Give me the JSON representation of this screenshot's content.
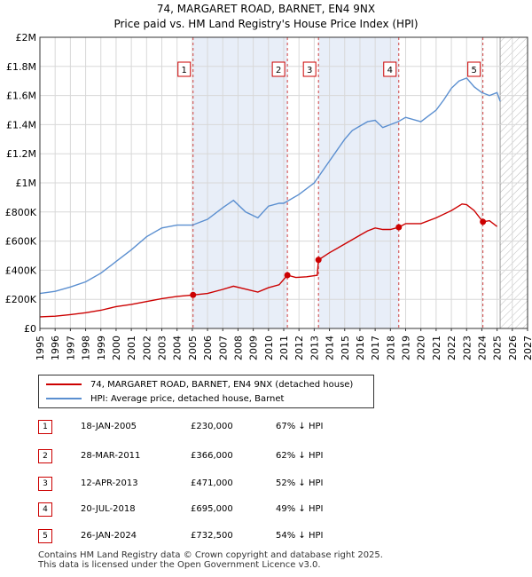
{
  "title": "74, MARGARET ROAD, BARNET, EN4 9NX",
  "subtitle": "Price paid vs. HM Land Registry's House Price Index (HPI)",
  "colors": {
    "property": "#cc0000",
    "hpi": "#5b8fd0",
    "shade": "#e8eef8",
    "grid": "#d8d8d8",
    "vline": "#d04040",
    "future_hatch": "#bbbbbb"
  },
  "chart_data": {
    "type": "line",
    "ylim": [
      0,
      2000000
    ],
    "xlim": [
      1995,
      2027
    ],
    "y_ticks": [
      {
        "value": 0,
        "label": "£0"
      },
      {
        "value": 200000,
        "label": "£200K"
      },
      {
        "value": 400000,
        "label": "£400K"
      },
      {
        "value": 600000,
        "label": "£600K"
      },
      {
        "value": 800000,
        "label": "£800K"
      },
      {
        "value": 1000000,
        "label": "£1M"
      },
      {
        "value": 1200000,
        "label": "£1.2M"
      },
      {
        "value": 1400000,
        "label": "£1.4M"
      },
      {
        "value": 1600000,
        "label": "£1.6M"
      },
      {
        "value": 1800000,
        "label": "£1.8M"
      },
      {
        "value": 2000000,
        "label": "£2M"
      }
    ],
    "x_ticks": [
      "1995",
      "1996",
      "1997",
      "1998",
      "1999",
      "2000",
      "2001",
      "2002",
      "2003",
      "2004",
      "2005",
      "2006",
      "2007",
      "2008",
      "2009",
      "2010",
      "2011",
      "2012",
      "2013",
      "2014",
      "2015",
      "2016",
      "2017",
      "2018",
      "2019",
      "2020",
      "2021",
      "2022",
      "2023",
      "2024",
      "2025",
      "2026",
      "2027"
    ],
    "forecast_start": 2025.2,
    "series": [
      {
        "name": "74, MARGARET ROAD, BARNET, EN4 9NX (detached house)",
        "color": "#cc0000",
        "x": [
          1995.0,
          1996.0,
          1997.0,
          1998.0,
          1999.0,
          2000.0,
          2001.0,
          2002.0,
          2003.0,
          2004.0,
          2005.05,
          2006.0,
          2007.0,
          2007.7,
          2008.5,
          2009.3,
          2010.0,
          2010.7,
          2011.24,
          2011.8,
          2012.5,
          2013.2,
          2013.28,
          2014.0,
          2015.0,
          2016.0,
          2016.5,
          2017.0,
          2017.5,
          2018.0,
          2018.55,
          2019.0,
          2020.0,
          2021.0,
          2022.0,
          2022.7,
          2023.0,
          2023.5,
          2024.07,
          2024.5,
          2025.0
        ],
        "y": [
          80000,
          84000,
          95000,
          108000,
          125000,
          150000,
          165000,
          185000,
          205000,
          220000,
          230000,
          240000,
          268000,
          290000,
          270000,
          250000,
          280000,
          300000,
          366000,
          350000,
          355000,
          365000,
          471000,
          520000,
          580000,
          640000,
          670000,
          690000,
          680000,
          680000,
          695000,
          720000,
          720000,
          760000,
          810000,
          855000,
          850000,
          810000,
          732500,
          740000,
          700000
        ]
      },
      {
        "name": "HPI: Average price, detached house, Barnet",
        "color": "#5b8fd0",
        "x": [
          1995.0,
          1996.0,
          1997.0,
          1998.0,
          1999.0,
          2000.0,
          2001.0,
          2002.0,
          2003.0,
          2004.0,
          2005.0,
          2006.0,
          2007.0,
          2007.7,
          2008.5,
          2009.3,
          2010.0,
          2010.7,
          2011.0,
          2012.0,
          2013.0,
          2014.0,
          2015.0,
          2015.5,
          2016.0,
          2016.5,
          2017.0,
          2017.5,
          2018.0,
          2018.5,
          2019.0,
          2020.0,
          2021.0,
          2021.5,
          2022.0,
          2022.5,
          2023.0,
          2023.5,
          2024.0,
          2024.5,
          2025.0,
          2025.2
        ],
        "y": [
          240000,
          255000,
          285000,
          320000,
          380000,
          460000,
          540000,
          630000,
          690000,
          710000,
          710000,
          750000,
          830000,
          880000,
          800000,
          760000,
          840000,
          860000,
          860000,
          920000,
          1000000,
          1150000,
          1300000,
          1360000,
          1390000,
          1420000,
          1430000,
          1380000,
          1400000,
          1420000,
          1450000,
          1420000,
          1500000,
          1570000,
          1650000,
          1700000,
          1720000,
          1660000,
          1620000,
          1600000,
          1620000,
          1560000
        ]
      }
    ],
    "markers": [
      {
        "label": "1",
        "x": 2005.05,
        "y": 230000
      },
      {
        "label": "2",
        "x": 2011.24,
        "y": 366000
      },
      {
        "label": "3",
        "x": 2013.28,
        "y": 471000
      },
      {
        "label": "4",
        "x": 2018.55,
        "y": 695000
      },
      {
        "label": "5",
        "x": 2024.07,
        "y": 732500
      }
    ]
  },
  "legend": {
    "property": "74, MARGARET ROAD, BARNET, EN4 9NX (detached house)",
    "hpi": "HPI: Average price, detached house, Barnet"
  },
  "transactions": [
    {
      "num": "1",
      "date": "18-JAN-2005",
      "price": "£230,000",
      "delta": "67% ↓ HPI"
    },
    {
      "num": "2",
      "date": "28-MAR-2011",
      "price": "£366,000",
      "delta": "62% ↓ HPI"
    },
    {
      "num": "3",
      "date": "12-APR-2013",
      "price": "£471,000",
      "delta": "52% ↓ HPI"
    },
    {
      "num": "4",
      "date": "20-JUL-2018",
      "price": "£695,000",
      "delta": "49% ↓ HPI"
    },
    {
      "num": "5",
      "date": "26-JAN-2024",
      "price": "£732,500",
      "delta": "54% ↓ HPI"
    }
  ],
  "footer": {
    "line1": "Contains HM Land Registry data © Crown copyright and database right 2025.",
    "line2": "This data is licensed under the Open Government Licence v3.0."
  }
}
